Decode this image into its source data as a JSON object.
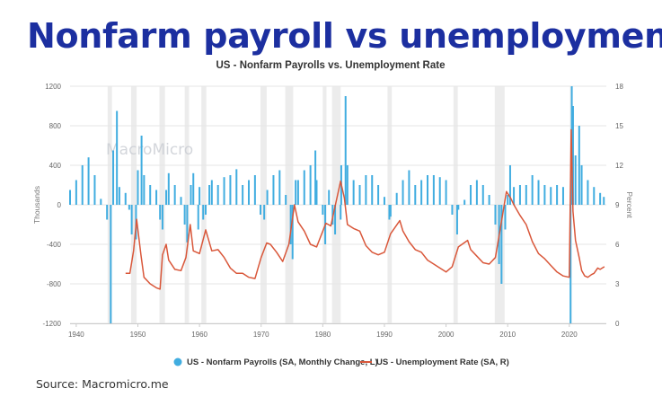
{
  "headline": "Nonfarm payroll vs unemployment",
  "source": "Source: Macromicro.me",
  "colors": {
    "payrolls": "#41ade0",
    "unemployment": "#d9573a",
    "recession": "#ececec",
    "headline": "#1c2fa0"
  },
  "chart_data": {
    "type": "bar+line",
    "title": "US - Nonfarm Payrolls vs. Unemployment Rate",
    "watermark": "MacroMicro",
    "y_left": {
      "label": "Thousands",
      "range": [
        -1200,
        1200
      ],
      "ticks": [
        1200,
        800,
        400,
        0,
        -400,
        -800,
        -1200
      ]
    },
    "y_right": {
      "label": "Percent",
      "range": [
        0,
        18
      ],
      "ticks": [
        18,
        15,
        12,
        9,
        6,
        3,
        0
      ]
    },
    "x_axis": {
      "range": [
        1939,
        2026
      ],
      "ticks": [
        1940,
        1950,
        1960,
        1970,
        1980,
        1990,
        2000,
        2010,
        2020
      ]
    },
    "recessions": [
      [
        1945.1,
        1945.8
      ],
      [
        1948.9,
        1949.8
      ],
      [
        1953.5,
        1954.4
      ],
      [
        1957.6,
        1958.3
      ],
      [
        1960.3,
        1961.1
      ],
      [
        1969.9,
        1970.9
      ],
      [
        1973.9,
        1975.2
      ],
      [
        1980.0,
        1980.6
      ],
      [
        1981.5,
        1982.9
      ],
      [
        1990.5,
        1991.2
      ],
      [
        2001.2,
        2001.9
      ],
      [
        2007.9,
        2009.5
      ],
      [
        2020.1,
        2020.4
      ]
    ],
    "series": [
      {
        "name": "US - Nonfarm Payrolls (SA, Monthly Change, L)",
        "type": "bar",
        "axis": "left",
        "points": [
          [
            1939.0,
            150
          ],
          [
            1940.0,
            250
          ],
          [
            1941.0,
            400
          ],
          [
            1942.0,
            480
          ],
          [
            1943.0,
            300
          ],
          [
            1944.0,
            60
          ],
          [
            1945.0,
            -150
          ],
          [
            1945.6,
            -1200
          ],
          [
            1946.0,
            550
          ],
          [
            1946.6,
            950
          ],
          [
            1947.0,
            180
          ],
          [
            1948.0,
            120
          ],
          [
            1948.6,
            -50
          ],
          [
            1949.0,
            -300
          ],
          [
            1949.7,
            -350
          ],
          [
            1950.0,
            350
          ],
          [
            1950.6,
            700
          ],
          [
            1951.0,
            300
          ],
          [
            1952.0,
            200
          ],
          [
            1953.0,
            150
          ],
          [
            1953.6,
            -150
          ],
          [
            1954.0,
            -250
          ],
          [
            1954.6,
            150
          ],
          [
            1955.0,
            320
          ],
          [
            1956.0,
            200
          ],
          [
            1957.0,
            80
          ],
          [
            1957.6,
            -200
          ],
          [
            1958.0,
            -380
          ],
          [
            1958.6,
            200
          ],
          [
            1959.0,
            320
          ],
          [
            1959.8,
            -250
          ],
          [
            1960.0,
            180
          ],
          [
            1960.6,
            -150
          ],
          [
            1961.0,
            -100
          ],
          [
            1961.6,
            200
          ],
          [
            1962.0,
            250
          ],
          [
            1963.0,
            200
          ],
          [
            1964.0,
            280
          ],
          [
            1965.0,
            300
          ],
          [
            1966.0,
            360
          ],
          [
            1967.0,
            200
          ],
          [
            1968.0,
            250
          ],
          [
            1969.0,
            300
          ],
          [
            1969.9,
            -100
          ],
          [
            1970.5,
            -150
          ],
          [
            1971.0,
            150
          ],
          [
            1972.0,
            300
          ],
          [
            1973.0,
            350
          ],
          [
            1974.0,
            100
          ],
          [
            1974.8,
            -400
          ],
          [
            1975.1,
            -550
          ],
          [
            1975.6,
            250
          ],
          [
            1976.0,
            250
          ],
          [
            1977.0,
            350
          ],
          [
            1978.0,
            400
          ],
          [
            1978.8,
            550
          ],
          [
            1979.0,
            250
          ],
          [
            1980.0,
            -100
          ],
          [
            1980.4,
            -400
          ],
          [
            1981.0,
            150
          ],
          [
            1981.6,
            -200
          ],
          [
            1982.0,
            -300
          ],
          [
            1982.9,
            -150
          ],
          [
            1983.0,
            400
          ],
          [
            1983.7,
            1100
          ],
          [
            1984.0,
            400
          ],
          [
            1985.0,
            250
          ],
          [
            1986.0,
            200
          ],
          [
            1987.0,
            300
          ],
          [
            1988.0,
            300
          ],
          [
            1989.0,
            200
          ],
          [
            1990.0,
            80
          ],
          [
            1990.8,
            -150
          ],
          [
            1991.0,
            -120
          ],
          [
            1992.0,
            120
          ],
          [
            1993.0,
            250
          ],
          [
            1994.0,
            350
          ],
          [
            1995.0,
            200
          ],
          [
            1996.0,
            250
          ],
          [
            1997.0,
            300
          ],
          [
            1998.0,
            300
          ],
          [
            1999.0,
            280
          ],
          [
            2000.0,
            250
          ],
          [
            2001.0,
            -100
          ],
          [
            2001.8,
            -300
          ],
          [
            2002.0,
            -50
          ],
          [
            2003.0,
            50
          ],
          [
            2004.0,
            200
          ],
          [
            2005.0,
            250
          ],
          [
            2006.0,
            200
          ],
          [
            2007.0,
            100
          ],
          [
            2008.0,
            -200
          ],
          [
            2008.6,
            -600
          ],
          [
            2009.0,
            -800
          ],
          [
            2009.6,
            -250
          ],
          [
            2010.0,
            100
          ],
          [
            2010.4,
            400
          ],
          [
            2011.0,
            180
          ],
          [
            2012.0,
            200
          ],
          [
            2013.0,
            200
          ],
          [
            2014.0,
            300
          ],
          [
            2015.0,
            250
          ],
          [
            2016.0,
            200
          ],
          [
            2017.0,
            180
          ],
          [
            2018.0,
            200
          ],
          [
            2019.0,
            180
          ],
          [
            2020.2,
            -1200
          ],
          [
            2020.4,
            1200
          ],
          [
            2020.6,
            1000
          ],
          [
            2021.0,
            500
          ],
          [
            2021.6,
            800
          ],
          [
            2022.0,
            400
          ],
          [
            2023.0,
            250
          ],
          [
            2024.0,
            180
          ],
          [
            2025.0,
            120
          ],
          [
            2025.6,
            80
          ]
        ]
      },
      {
        "name": "US - Unemployment Rate (SA, R)",
        "type": "line",
        "axis": "right",
        "points": [
          [
            1948.0,
            3.8
          ],
          [
            1948.7,
            3.8
          ],
          [
            1949.3,
            5.5
          ],
          [
            1949.8,
            7.9
          ],
          [
            1950.5,
            5.2
          ],
          [
            1951.0,
            3.5
          ],
          [
            1952.0,
            3.0
          ],
          [
            1953.0,
            2.7
          ],
          [
            1953.6,
            2.6
          ],
          [
            1954.0,
            5.2
          ],
          [
            1954.6,
            6.0
          ],
          [
            1955.0,
            4.8
          ],
          [
            1956.0,
            4.1
          ],
          [
            1957.0,
            4.0
          ],
          [
            1957.8,
            5.0
          ],
          [
            1958.5,
            7.5
          ],
          [
            1959.0,
            5.5
          ],
          [
            1960.0,
            5.3
          ],
          [
            1961.0,
            7.1
          ],
          [
            1962.0,
            5.5
          ],
          [
            1963.0,
            5.6
          ],
          [
            1964.0,
            5.0
          ],
          [
            1965.0,
            4.2
          ],
          [
            1966.0,
            3.8
          ],
          [
            1967.0,
            3.8
          ],
          [
            1968.0,
            3.5
          ],
          [
            1969.0,
            3.4
          ],
          [
            1970.0,
            5.0
          ],
          [
            1970.9,
            6.1
          ],
          [
            1971.5,
            6.0
          ],
          [
            1972.5,
            5.4
          ],
          [
            1973.5,
            4.7
          ],
          [
            1974.5,
            6.0
          ],
          [
            1975.4,
            9.0
          ],
          [
            1976.0,
            7.7
          ],
          [
            1977.0,
            7.0
          ],
          [
            1978.0,
            6.0
          ],
          [
            1979.0,
            5.8
          ],
          [
            1980.5,
            7.6
          ],
          [
            1981.3,
            7.4
          ],
          [
            1982.9,
            10.8
          ],
          [
            1983.5,
            9.5
          ],
          [
            1984.0,
            7.5
          ],
          [
            1985.0,
            7.2
          ],
          [
            1986.0,
            7.0
          ],
          [
            1987.0,
            5.9
          ],
          [
            1988.0,
            5.4
          ],
          [
            1989.0,
            5.2
          ],
          [
            1990.0,
            5.4
          ],
          [
            1991.0,
            6.8
          ],
          [
            1992.5,
            7.8
          ],
          [
            1993.0,
            7.0
          ],
          [
            1994.0,
            6.2
          ],
          [
            1995.0,
            5.6
          ],
          [
            1996.0,
            5.4
          ],
          [
            1997.0,
            4.8
          ],
          [
            1998.0,
            4.5
          ],
          [
            1999.0,
            4.2
          ],
          [
            2000.0,
            3.9
          ],
          [
            2001.0,
            4.3
          ],
          [
            2002.0,
            5.8
          ],
          [
            2003.5,
            6.3
          ],
          [
            2004.0,
            5.6
          ],
          [
            2005.0,
            5.1
          ],
          [
            2006.0,
            4.6
          ],
          [
            2007.0,
            4.5
          ],
          [
            2008.0,
            5.0
          ],
          [
            2008.8,
            7.2
          ],
          [
            2009.8,
            10.0
          ],
          [
            2010.5,
            9.5
          ],
          [
            2011.0,
            9.0
          ],
          [
            2012.0,
            8.2
          ],
          [
            2013.0,
            7.5
          ],
          [
            2014.0,
            6.2
          ],
          [
            2015.0,
            5.3
          ],
          [
            2016.0,
            4.9
          ],
          [
            2017.0,
            4.4
          ],
          [
            2018.0,
            3.9
          ],
          [
            2019.0,
            3.6
          ],
          [
            2020.0,
            3.5
          ],
          [
            2020.3,
            14.7
          ],
          [
            2020.6,
            8.5
          ],
          [
            2021.0,
            6.3
          ],
          [
            2021.6,
            5.0
          ],
          [
            2022.0,
            4.0
          ],
          [
            2022.5,
            3.6
          ],
          [
            2023.0,
            3.5
          ],
          [
            2023.6,
            3.7
          ],
          [
            2024.0,
            3.8
          ],
          [
            2024.6,
            4.2
          ],
          [
            2025.0,
            4.1
          ],
          [
            2025.7,
            4.3
          ]
        ]
      }
    ],
    "legend": {
      "position": "bottom"
    }
  }
}
